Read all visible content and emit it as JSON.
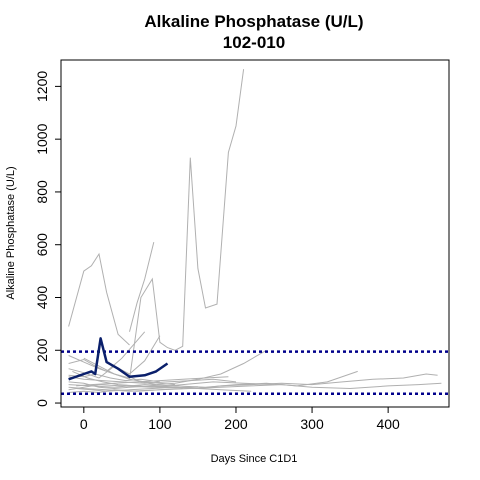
{
  "chart_data": {
    "type": "line",
    "title": "Alkaline Phosphatase (U/L)",
    "subtitle": "102-010",
    "xlabel": "Days Since C1D1",
    "ylabel": "Alkaline Phosphatase (U/L)",
    "xlim": [
      -30,
      480
    ],
    "ylim": [
      -15,
      1300
    ],
    "x_ticks": [
      0,
      100,
      200,
      300,
      400
    ],
    "y_ticks": [
      0,
      200,
      400,
      600,
      800,
      1000,
      1200
    ],
    "grid": false,
    "legend": "none",
    "reference_lines": [
      {
        "y": 195,
        "style": "dotted",
        "color": "#00008B"
      },
      {
        "y": 35,
        "style": "dotted",
        "color": "#00008B"
      }
    ],
    "highlight_series": {
      "color": "#0A1F6B",
      "x": [
        -20,
        0,
        10,
        15,
        22,
        30,
        45,
        60,
        80,
        95,
        110
      ],
      "y": [
        90,
        110,
        120,
        110,
        245,
        155,
        130,
        100,
        105,
        120,
        150
      ]
    },
    "background_series_color": "#B0B0B0",
    "background_series": [
      {
        "x": [
          -20,
          0,
          10,
          20,
          30,
          45,
          60
        ],
        "y": [
          290,
          500,
          520,
          565,
          420,
          260,
          220
        ]
      },
      {
        "x": [
          60,
          75,
          90,
          100,
          110,
          120,
          130,
          140,
          150,
          160,
          175,
          190,
          200,
          210
        ],
        "y": [
          90,
          400,
          470,
          230,
          210,
          200,
          215,
          930,
          510,
          360,
          375,
          950,
          1050,
          1265
        ]
      },
      {
        "x": [
          60,
          70,
          80,
          92
        ],
        "y": [
          270,
          380,
          470,
          610
        ]
      },
      {
        "x": [
          60,
          75,
          95,
          120,
          150,
          180,
          210,
          240
        ],
        "y": [
          100,
          80,
          70,
          75,
          90,
          110,
          150,
          200
        ]
      },
      {
        "x": [
          -20,
          0,
          15,
          30,
          50,
          80
        ],
        "y": [
          150,
          165,
          140,
          120,
          170,
          270
        ]
      },
      {
        "x": [
          -20,
          0,
          20,
          40,
          60,
          80,
          100
        ],
        "y": [
          130,
          115,
          95,
          140,
          110,
          160,
          255
        ]
      },
      {
        "x": [
          -20,
          0,
          20,
          40,
          60,
          90,
          120,
          150,
          180,
          220,
          260,
          300,
          340,
          380,
          420,
          450,
          465
        ],
        "y": [
          80,
          75,
          60,
          55,
          60,
          65,
          60,
          55,
          65,
          70,
          75,
          70,
          80,
          90,
          95,
          110,
          105
        ]
      },
      {
        "x": [
          -20,
          0,
          30,
          60,
          100,
          140,
          180,
          220,
          260,
          300,
          350,
          400,
          440,
          470
        ],
        "y": [
          60,
          55,
          50,
          45,
          50,
          55,
          60,
          65,
          70,
          60,
          55,
          65,
          70,
          75
        ]
      },
      {
        "x": [
          -20,
          10,
          40,
          80,
          120,
          160,
          200,
          240,
          280,
          320,
          360
        ],
        "y": [
          70,
          65,
          60,
          70,
          65,
          60,
          70,
          75,
          65,
          80,
          120
        ]
      },
      {
        "x": [
          -20,
          0,
          25,
          50,
          80,
          110,
          140,
          170,
          200
        ],
        "y": [
          100,
          90,
          85,
          80,
          75,
          80,
          85,
          90,
          80
        ]
      },
      {
        "x": [
          -10,
          10,
          30,
          60,
          90,
          120,
          150,
          180,
          220
        ],
        "y": [
          55,
          50,
          45,
          50,
          55,
          60,
          55,
          50,
          45
        ]
      },
      {
        "x": [
          -20,
          0,
          20,
          40,
          70,
          100,
          130
        ],
        "y": [
          40,
          45,
          40,
          50,
          45,
          50,
          55
        ]
      },
      {
        "x": [
          -15,
          5,
          25,
          45,
          70,
          95,
          120,
          150
        ],
        "y": [
          120,
          95,
          80,
          70,
          65,
          60,
          58,
          62
        ]
      },
      {
        "x": [
          -20,
          0,
          15,
          35,
          55,
          75,
          100
        ],
        "y": [
          105,
          100,
          110,
          95,
          85,
          90,
          80
        ]
      },
      {
        "x": [
          -10,
          10,
          40,
          70,
          100,
          130,
          160,
          190
        ],
        "y": [
          65,
          70,
          75,
          80,
          85,
          90,
          95,
          100
        ]
      },
      {
        "x": [
          0,
          20,
          40,
          60,
          80,
          100,
          120
        ],
        "y": [
          170,
          140,
          110,
          90,
          80,
          75,
          70
        ]
      },
      {
        "x": [
          -20,
          0,
          20,
          50,
          90,
          130,
          170,
          210,
          250
        ],
        "y": [
          50,
          60,
          70,
          65,
          60,
          70,
          80,
          75,
          70
        ]
      },
      {
        "x": [
          -20,
          0,
          20,
          40,
          60
        ],
        "y": [
          180,
          155,
          130,
          110,
          95
        ]
      }
    ]
  }
}
